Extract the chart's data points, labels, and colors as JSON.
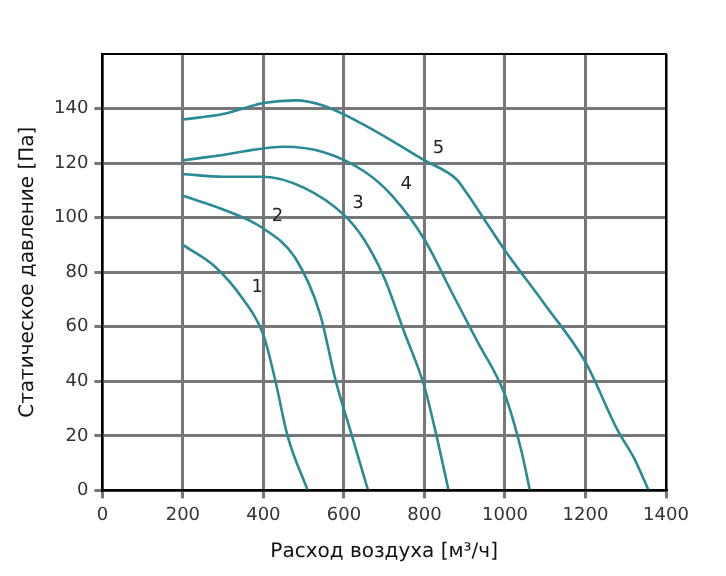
{
  "chart_data": {
    "type": "line",
    "xlabel": "Расход воздуха [м³/ч]",
    "ylabel": "Статическое давление [Па]",
    "xlim": [
      0,
      1400
    ],
    "xticks": [
      0,
      200,
      400,
      600,
      800,
      1000,
      1200,
      1400
    ],
    "ylim": [
      0,
      160
    ],
    "yticks": [
      0,
      20,
      40,
      60,
      80,
      100,
      120,
      140
    ],
    "grid": true,
    "legend": false,
    "marker": "none",
    "line_style": "solid",
    "series": [
      {
        "name": "1",
        "color": "#2a8a96",
        "x": [
          200,
          280,
          350,
          400,
          430,
          460,
          510
        ],
        "values": [
          90,
          82,
          70,
          57,
          40,
          20,
          0
        ]
      },
      {
        "name": "2",
        "color": "#2a8a96",
        "x": [
          200,
          300,
          400,
          480,
          540,
          580,
          620,
          660
        ],
        "values": [
          108,
          103,
          96,
          85,
          65,
          40,
          20,
          0
        ]
      },
      {
        "name": "3",
        "color": "#2a8a96",
        "x": [
          200,
          300,
          400,
          500,
          600,
          650,
          700,
          750,
          800,
          830,
          860
        ],
        "values": [
          116,
          115,
          115,
          111,
          101,
          92,
          78,
          58,
          38,
          20,
          0
        ]
      },
      {
        "name": "4",
        "color": "#2a8a96",
        "x": [
          200,
          300,
          450,
          550,
          650,
          720,
          800,
          870,
          930,
          1000,
          1040,
          1062
        ],
        "values": [
          121,
          123,
          126,
          124,
          117,
          108,
          92,
          72,
          55,
          35,
          15,
          0
        ]
      },
      {
        "name": "5",
        "color": "#2a8a96",
        "x": [
          200,
          300,
          400,
          480,
          550,
          650,
          800,
          880,
          905,
          937,
          1000,
          1100,
          1200,
          1280,
          1320,
          1357
        ],
        "values": [
          136,
          138,
          142,
          143,
          141,
          134,
          121,
          114,
          109,
          102,
          88,
          68,
          47,
          22,
          12,
          0
        ]
      }
    ]
  }
}
